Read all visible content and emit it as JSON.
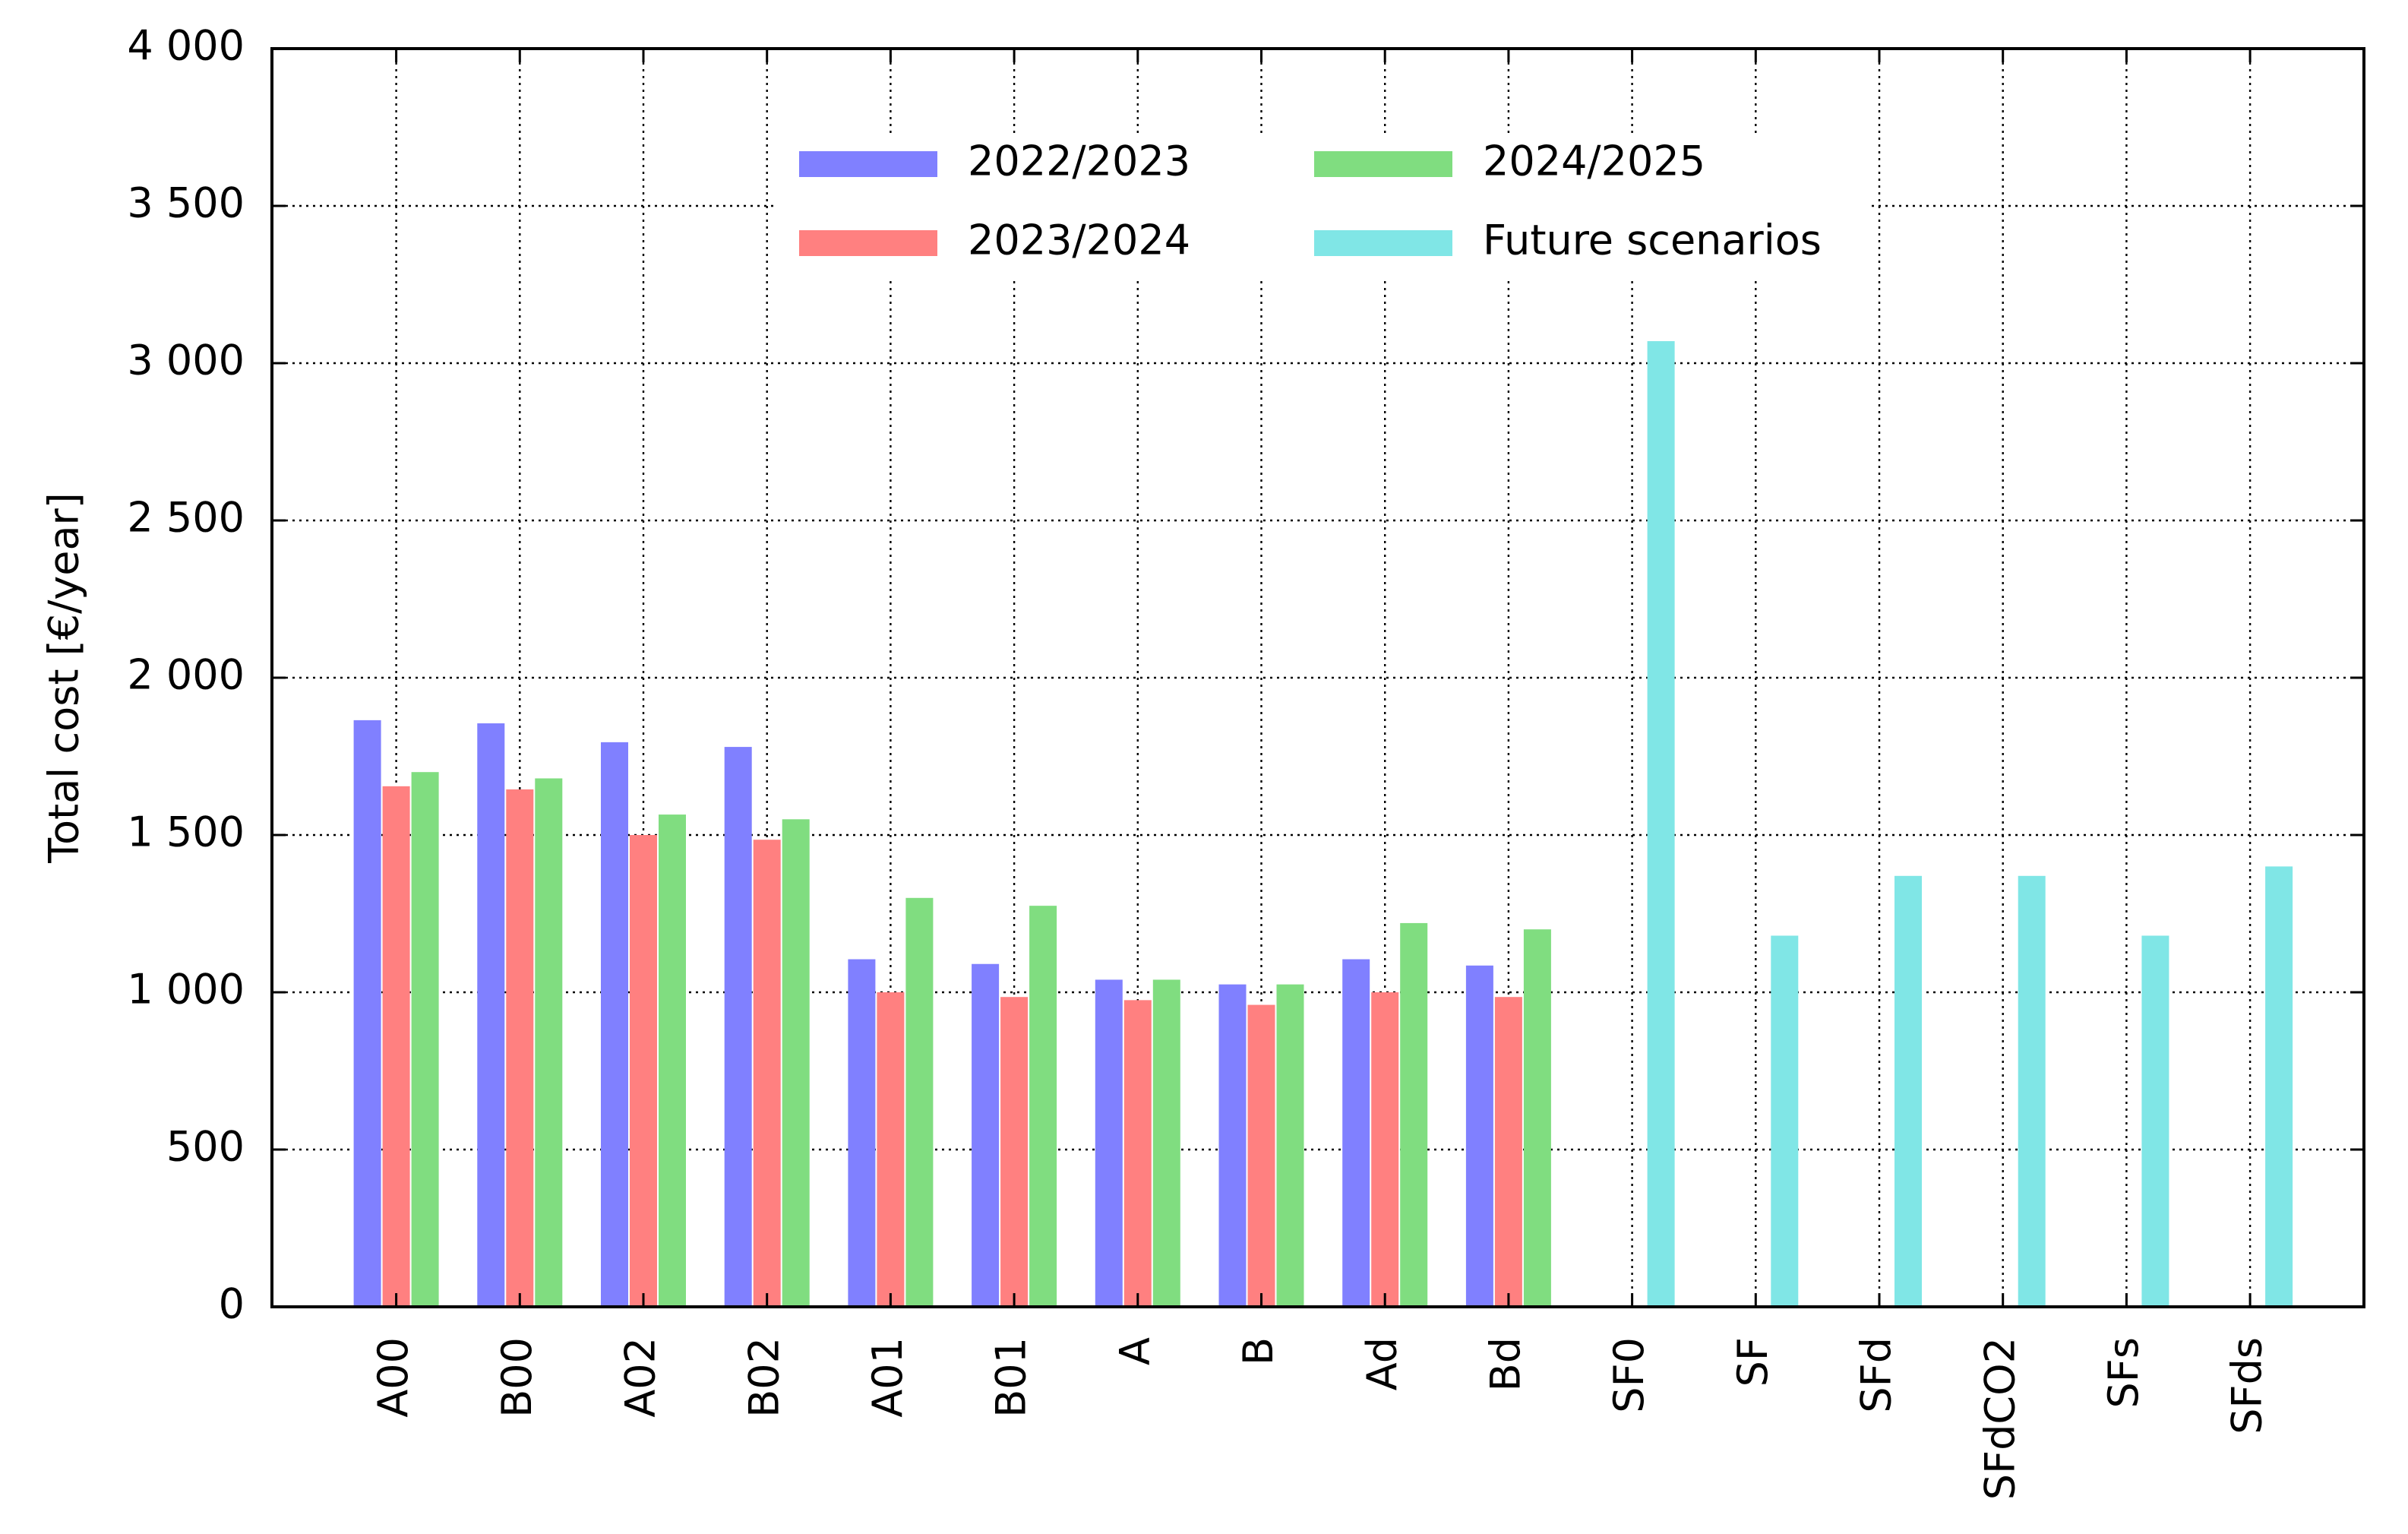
{
  "chart_data": {
    "type": "bar",
    "title": "",
    "xlabel": "",
    "ylabel": "Total cost [€/year]",
    "ylim": [
      0,
      4000
    ],
    "yticks": [
      0,
      500,
      1000,
      1500,
      2000,
      2500,
      3000,
      3500,
      4000
    ],
    "ytick_labels": [
      "0",
      "500",
      "1 000",
      "1 500",
      "2 000",
      "2 500",
      "3 000",
      "3 500",
      "4 000"
    ],
    "grid": true,
    "legend_position": "top-center",
    "categories": [
      "A00",
      "B00",
      "A02",
      "B02",
      "A01",
      "B01",
      "A",
      "B",
      "Ad",
      "Bd",
      "SF0",
      "SF",
      "SFd",
      "SFdCO2",
      "SFs",
      "SFds"
    ],
    "series": [
      {
        "name": "2022/2023",
        "color": "#8080ff",
        "values": [
          1865,
          1855,
          1795,
          1780,
          1105,
          1090,
          1040,
          1025,
          1105,
          1085,
          null,
          null,
          null,
          null,
          null,
          null
        ]
      },
      {
        "name": "2023/2024",
        "color": "#ff8080",
        "values": [
          1655,
          1645,
          1500,
          1485,
          1000,
          985,
          975,
          960,
          1000,
          985,
          null,
          null,
          null,
          null,
          null,
          null
        ]
      },
      {
        "name": "2024/2025",
        "color": "#80dd80",
        "values": [
          1700,
          1680,
          1565,
          1550,
          1300,
          1275,
          1040,
          1025,
          1220,
          1200,
          null,
          null,
          null,
          null,
          null,
          null
        ]
      },
      {
        "name": "Future scenarios",
        "color": "#80e6e6",
        "values": [
          null,
          null,
          null,
          null,
          null,
          null,
          null,
          null,
          null,
          null,
          3070,
          1180,
          1370,
          1370,
          1180,
          1400
        ]
      }
    ]
  }
}
